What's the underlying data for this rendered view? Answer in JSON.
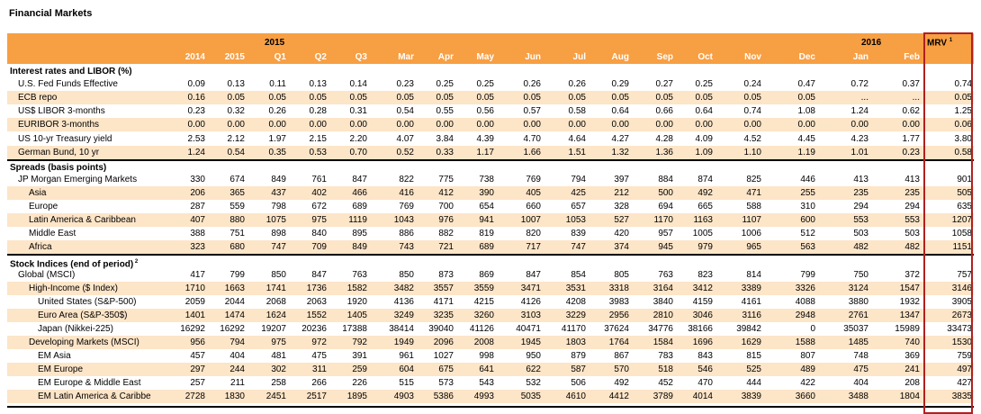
{
  "page_title": "Financial Markets",
  "header": {
    "year_2015": "2015",
    "year_2016": "2016",
    "mrv_label": "MRV",
    "mrv_note": "1",
    "columns": [
      "2014",
      "2015",
      "Q1",
      "Q2",
      "Q3",
      "Mar",
      "Apr",
      "May",
      "Jun",
      "Jul",
      "Aug",
      "Sep",
      "Oct",
      "Nov",
      "Dec",
      "Jan",
      "Feb"
    ]
  },
  "sections": [
    {
      "title": "Interest rates and LIBOR (%)",
      "rows": [
        {
          "label": "U.S. Fed Funds Effective",
          "values": [
            "0.09",
            "0.13",
            "0.11",
            "0.13",
            "0.14",
            "0.23",
            "0.25",
            "0.25",
            "0.26",
            "0.26",
            "0.29",
            "0.27",
            "0.25",
            "0.24",
            "0.47",
            "0.72",
            "0.37"
          ],
          "mrv": "0.74"
        },
        {
          "label": "ECB repo",
          "values": [
            "0.16",
            "0.05",
            "0.05",
            "0.05",
            "0.05",
            "0.05",
            "0.05",
            "0.05",
            "0.05",
            "0.05",
            "0.05",
            "0.05",
            "0.05",
            "0.05",
            "0.05",
            "...",
            "..."
          ],
          "mrv": "0.05"
        },
        {
          "label": "US$ LIBOR 3-months",
          "values": [
            "0.23",
            "0.32",
            "0.26",
            "0.28",
            "0.31",
            "0.54",
            "0.55",
            "0.56",
            "0.57",
            "0.58",
            "0.64",
            "0.66",
            "0.64",
            "0.74",
            "1.08",
            "1.24",
            "0.62"
          ],
          "mrv": "1.25"
        },
        {
          "label": "EURIBOR 3-months",
          "values": [
            "0.00",
            "0.00",
            "0.00",
            "0.00",
            "0.00",
            "0.00",
            "0.00",
            "0.00",
            "0.00",
            "0.00",
            "0.00",
            "0.00",
            "0.00",
            "0.00",
            "0.00",
            "0.00",
            "0.00"
          ],
          "mrv": "0.06"
        },
        {
          "label": "US 10-yr Treasury yield",
          "values": [
            "2.53",
            "2.12",
            "1.97",
            "2.15",
            "2.20",
            "4.07",
            "3.84",
            "4.39",
            "4.70",
            "4.64",
            "4.27",
            "4.28",
            "4.09",
            "4.52",
            "4.45",
            "4.23",
            "1.77"
          ],
          "mrv": "3.80"
        },
        {
          "label": "German Bund, 10 yr",
          "values": [
            "1.24",
            "0.54",
            "0.35",
            "0.53",
            "0.70",
            "0.52",
            "0.33",
            "1.17",
            "1.66",
            "1.51",
            "1.32",
            "1.36",
            "1.09",
            "1.10",
            "1.19",
            "1.01",
            "0.23"
          ],
          "mrv": "0.58"
        }
      ]
    },
    {
      "title": "Spreads (basis points)",
      "rows": [
        {
          "label": "JP Morgan Emerging Markets",
          "values": [
            "330",
            "674",
            "849",
            "761",
            "847",
            "822",
            "775",
            "738",
            "769",
            "794",
            "397",
            "884",
            "874",
            "825",
            "446",
            "413",
            "413"
          ],
          "mrv": "901"
        },
        {
          "label": "Asia",
          "values": [
            "206",
            "365",
            "437",
            "402",
            "466",
            "416",
            "412",
            "390",
            "405",
            "425",
            "212",
            "500",
            "492",
            "471",
            "255",
            "235",
            "235"
          ],
          "mrv": "505"
        },
        {
          "label": "Europe",
          "values": [
            "287",
            "559",
            "798",
            "672",
            "689",
            "769",
            "700",
            "654",
            "660",
            "657",
            "328",
            "694",
            "665",
            "588",
            "310",
            "294",
            "294"
          ],
          "mrv": "635"
        },
        {
          "label": "Latin America & Caribbean",
          "values": [
            "407",
            "880",
            "1075",
            "975",
            "1119",
            "1043",
            "976",
            "941",
            "1007",
            "1053",
            "527",
            "1170",
            "1163",
            "1107",
            "600",
            "553",
            "553"
          ],
          "mrv": "1207"
        },
        {
          "label": "Middle East",
          "values": [
            "388",
            "751",
            "898",
            "840",
            "895",
            "886",
            "882",
            "819",
            "820",
            "839",
            "420",
            "957",
            "1005",
            "1006",
            "512",
            "503",
            "503"
          ],
          "mrv": "1058"
        },
        {
          "label": "Africa",
          "values": [
            "323",
            "680",
            "747",
            "709",
            "849",
            "743",
            "721",
            "689",
            "717",
            "747",
            "374",
            "945",
            "979",
            "965",
            "563",
            "482",
            "482"
          ],
          "mrv": "1151"
        }
      ]
    },
    {
      "title": "Stock Indices (end of period)",
      "title_note": "2",
      "rows": [
        {
          "label": "Global (MSCI)",
          "values": [
            "417",
            "799",
            "850",
            "847",
            "763",
            "850",
            "873",
            "869",
            "847",
            "854",
            "805",
            "763",
            "823",
            "814",
            "799",
            "750",
            "372"
          ],
          "mrv": "757"
        },
        {
          "label": "High-Income ($ Index)",
          "values": [
            "1710",
            "1663",
            "1741",
            "1736",
            "1582",
            "3482",
            "3557",
            "3559",
            "3471",
            "3531",
            "3318",
            "3164",
            "3412",
            "3389",
            "3326",
            "3124",
            "1547"
          ],
          "mrv": "3146"
        },
        {
          "label": "United States (S&P-500)",
          "values": [
            "2059",
            "2044",
            "2068",
            "2063",
            "1920",
            "4136",
            "4171",
            "4215",
            "4126",
            "4208",
            "3983",
            "3840",
            "4159",
            "4161",
            "4088",
            "3880",
            "1932"
          ],
          "mrv": "3905"
        },
        {
          "label": "Euro Area (S&P-350$)",
          "values": [
            "1401",
            "1474",
            "1624",
            "1552",
            "1405",
            "3249",
            "3235",
            "3260",
            "3103",
            "3229",
            "2956",
            "2810",
            "3046",
            "3116",
            "2948",
            "2761",
            "1347"
          ],
          "mrv": "2673"
        },
        {
          "label": "Japan (Nikkei-225)",
          "values": [
            "16292",
            "16292",
            "19207",
            "20236",
            "17388",
            "38414",
            "39040",
            "41126",
            "40471",
            "41170",
            "37624",
            "34776",
            "38166",
            "39842",
            "0",
            "35037",
            "15989"
          ],
          "mrv": "33473"
        },
        {
          "label": "Developing Markets (MSCI)",
          "values": [
            "956",
            "794",
            "975",
            "972",
            "792",
            "1949",
            "2096",
            "2008",
            "1945",
            "1803",
            "1764",
            "1584",
            "1696",
            "1629",
            "1588",
            "1485",
            "740"
          ],
          "mrv": "1530"
        },
        {
          "label": "EM Asia",
          "values": [
            "457",
            "404",
            "481",
            "475",
            "391",
            "961",
            "1027",
            "998",
            "950",
            "879",
            "867",
            "783",
            "843",
            "815",
            "807",
            "748",
            "369"
          ],
          "mrv": "759"
        },
        {
          "label": "EM Europe",
          "values": [
            "297",
            "244",
            "302",
            "311",
            "259",
            "604",
            "675",
            "641",
            "622",
            "587",
            "570",
            "518",
            "546",
            "525",
            "489",
            "475",
            "241"
          ],
          "mrv": "497"
        },
        {
          "label": "EM Europe & Middle East",
          "values": [
            "257",
            "211",
            "258",
            "266",
            "226",
            "515",
            "573",
            "543",
            "532",
            "506",
            "492",
            "452",
            "470",
            "444",
            "422",
            "404",
            "208"
          ],
          "mrv": "427"
        },
        {
          "label": "EM Latin America & Caribbe",
          "values": [
            "2728",
            "1830",
            "2451",
            "2517",
            "1895",
            "4903",
            "5386",
            "4993",
            "5035",
            "4610",
            "4412",
            "3789",
            "4014",
            "3839",
            "3660",
            "3488",
            "1804"
          ],
          "mrv": "3835"
        }
      ]
    }
  ]
}
